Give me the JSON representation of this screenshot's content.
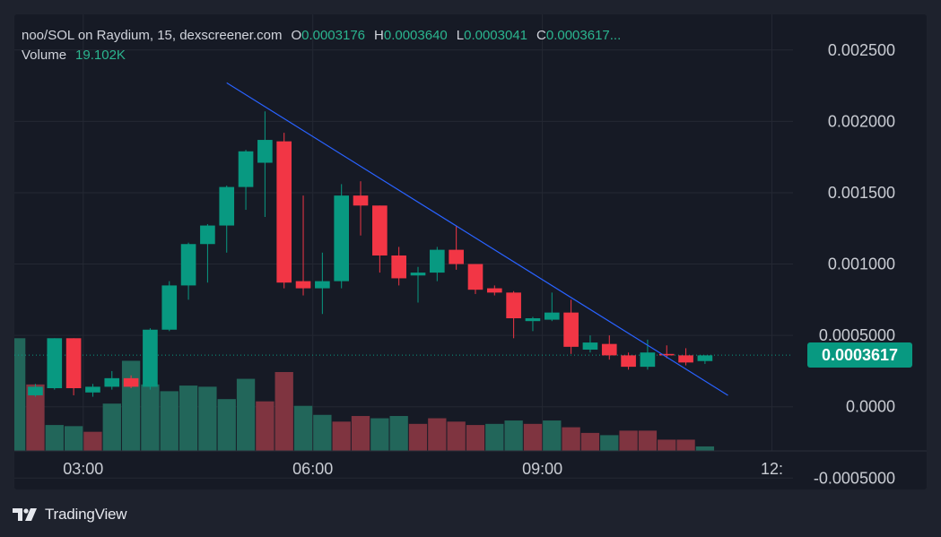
{
  "legend": {
    "title": "noo/SOL on Raydium, 15, dexscreener.com",
    "o_label": "O",
    "o_value": "0.0003176",
    "h_label": "H",
    "h_value": "0.0003640",
    "l_label": "L",
    "l_value": "0.0003041",
    "c_label": "C",
    "c_value": "0.0003617...",
    "volume_label": "Volume",
    "volume_value": "19.102K"
  },
  "last_price": {
    "label": "0.0003617",
    "value": 0.0003617,
    "color": "#089981"
  },
  "branding": {
    "name": "TradingView",
    "logo_icon": "tradingview-logo-icon"
  },
  "colors": {
    "up": "#089981",
    "down": "#f23645",
    "up_vol": "#22665a",
    "down_vol": "#7f3440",
    "trendline": "#2962ff",
    "grid": "#242833"
  },
  "chart_data": {
    "type": "candlestick",
    "title": "noo/SOL on Raydium, 15, dexscreener.com",
    "y_ticks": [
      "0.002500",
      "0.002000",
      "0.001500",
      "0.001000",
      "0.0005000",
      "0.0000",
      "-0.0005000"
    ],
    "y_tick_values": [
      0.0025,
      0.002,
      0.0015,
      0.001,
      0.0005,
      0,
      -0.0005
    ],
    "ylim": [
      -0.00058,
      0.00275
    ],
    "x_ticks": [
      {
        "label": "03:00",
        "index": 2.5
      },
      {
        "label": "06:00",
        "index": 14.5
      },
      {
        "label": "09:00",
        "index": 26.5
      },
      {
        "label": "12:",
        "index": 38.5
      }
    ],
    "xlim": [
      -1.1,
      39.6
    ],
    "candles": [
      {
        "o": 8e-05,
        "h": 0.00016,
        "l": 7e-05,
        "c": 0.00014
      },
      {
        "o": 0.00013,
        "h": 0.00048,
        "l": 0.00012,
        "c": 0.00048
      },
      {
        "o": 0.00048,
        "h": 0.00048,
        "l": 8e-05,
        "c": 0.00013
      },
      {
        "o": 0.0001,
        "h": 0.00016,
        "l": 7e-05,
        "c": 0.00014
      },
      {
        "o": 0.00014,
        "h": 0.00025,
        "l": 0.00012,
        "c": 0.0002
      },
      {
        "o": 0.0002,
        "h": 0.00022,
        "l": 0.00013,
        "c": 0.00014
      },
      {
        "o": 0.00014,
        "h": 0.00055,
        "l": 0.00012,
        "c": 0.00054
      },
      {
        "o": 0.00054,
        "h": 0.00088,
        "l": 0.00053,
        "c": 0.00085
      },
      {
        "o": 0.00085,
        "h": 0.00115,
        "l": 0.00075,
        "c": 0.00114
      },
      {
        "o": 0.00114,
        "h": 0.00128,
        "l": 0.00087,
        "c": 0.00127
      },
      {
        "o": 0.00127,
        "h": 0.00155,
        "l": 0.00108,
        "c": 0.00154
      },
      {
        "o": 0.00154,
        "h": 0.0018,
        "l": 0.00138,
        "c": 0.00179
      },
      {
        "o": 0.00171,
        "h": 0.00207,
        "l": 0.00133,
        "c": 0.00187
      },
      {
        "o": 0.00186,
        "h": 0.00192,
        "l": 0.00083,
        "c": 0.00087
      },
      {
        "o": 0.00088,
        "h": 0.00148,
        "l": 0.00078,
        "c": 0.00083
      },
      {
        "o": 0.00083,
        "h": 0.00108,
        "l": 0.00065,
        "c": 0.00088
      },
      {
        "o": 0.00088,
        "h": 0.00156,
        "l": 0.00083,
        "c": 0.00148
      },
      {
        "o": 0.00148,
        "h": 0.00158,
        "l": 0.0012,
        "c": 0.00141
      },
      {
        "o": 0.00141,
        "h": 0.00141,
        "l": 0.00094,
        "c": 0.00106
      },
      {
        "o": 0.00106,
        "h": 0.00112,
        "l": 0.00085,
        "c": 0.0009
      },
      {
        "o": 0.00092,
        "h": 0.00098,
        "l": 0.00073,
        "c": 0.00094
      },
      {
        "o": 0.00094,
        "h": 0.00112,
        "l": 0.00088,
        "c": 0.0011
      },
      {
        "o": 0.0011,
        "h": 0.00127,
        "l": 0.00096,
        "c": 0.001
      },
      {
        "o": 0.001,
        "h": 0.001,
        "l": 0.00079,
        "c": 0.00082
      },
      {
        "o": 0.00083,
        "h": 0.00085,
        "l": 0.00078,
        "c": 0.0008
      },
      {
        "o": 0.0008,
        "h": 0.00081,
        "l": 0.00048,
        "c": 0.00062
      },
      {
        "o": 0.0006,
        "h": 0.00063,
        "l": 0.00053,
        "c": 0.00062
      },
      {
        "o": 0.00061,
        "h": 0.0008,
        "l": 0.0006,
        "c": 0.00066
      },
      {
        "o": 0.00066,
        "h": 0.00075,
        "l": 0.00037,
        "c": 0.00042
      },
      {
        "o": 0.0004,
        "h": 0.0005,
        "l": 0.00038,
        "c": 0.00045
      },
      {
        "o": 0.00044,
        "h": 0.0005,
        "l": 0.00033,
        "c": 0.00036
      },
      {
        "o": 0.00036,
        "h": 0.00038,
        "l": 0.00026,
        "c": 0.00028
      },
      {
        "o": 0.00028,
        "h": 0.00047,
        "l": 0.00026,
        "c": 0.00038
      },
      {
        "o": 0.00037,
        "h": 0.00043,
        "l": 0.00034,
        "c": 0.00036
      },
      {
        "o": 0.00036,
        "h": 0.00041,
        "l": 0.00029,
        "c": 0.00031
      },
      {
        "o": 0.00032,
        "h": 0.00036,
        "l": 0.0003,
        "c": 0.00036
      }
    ],
    "volume_scale": [
      0,
      1
    ],
    "volumes": [
      0.29,
      1.0,
      0.59,
      0.23,
      0.22,
      0.17,
      0.42,
      0.8,
      0.59,
      0.53,
      0.58,
      0.57,
      0.46,
      0.64,
      0.44,
      0.7,
      0.4,
      0.32,
      0.26,
      0.31,
      0.29,
      0.31,
      0.24,
      0.29,
      0.26,
      0.23,
      0.24,
      0.27,
      0.24,
      0.27,
      0.21,
      0.16,
      0.14,
      0.18,
      0.18,
      0.1,
      0.1,
      0.04
    ],
    "volume_colors": [
      "up",
      "up",
      "down",
      "up",
      "up",
      "down",
      "up",
      "up",
      "up",
      "up",
      "up",
      "up",
      "up",
      "up",
      "down",
      "down",
      "up",
      "up",
      "down",
      "down",
      "up",
      "up",
      "down",
      "down",
      "down",
      "down",
      "up",
      "up",
      "down",
      "up",
      "down",
      "down",
      "up",
      "down",
      "down",
      "down",
      "down",
      "up"
    ],
    "volume_offset": -2,
    "trendline": {
      "start": {
        "index": 10,
        "value": 0.00227
      },
      "end": {
        "index": 36.2,
        "value": 8e-05
      }
    },
    "last_price_line": 0.0003617,
    "grid": true
  }
}
